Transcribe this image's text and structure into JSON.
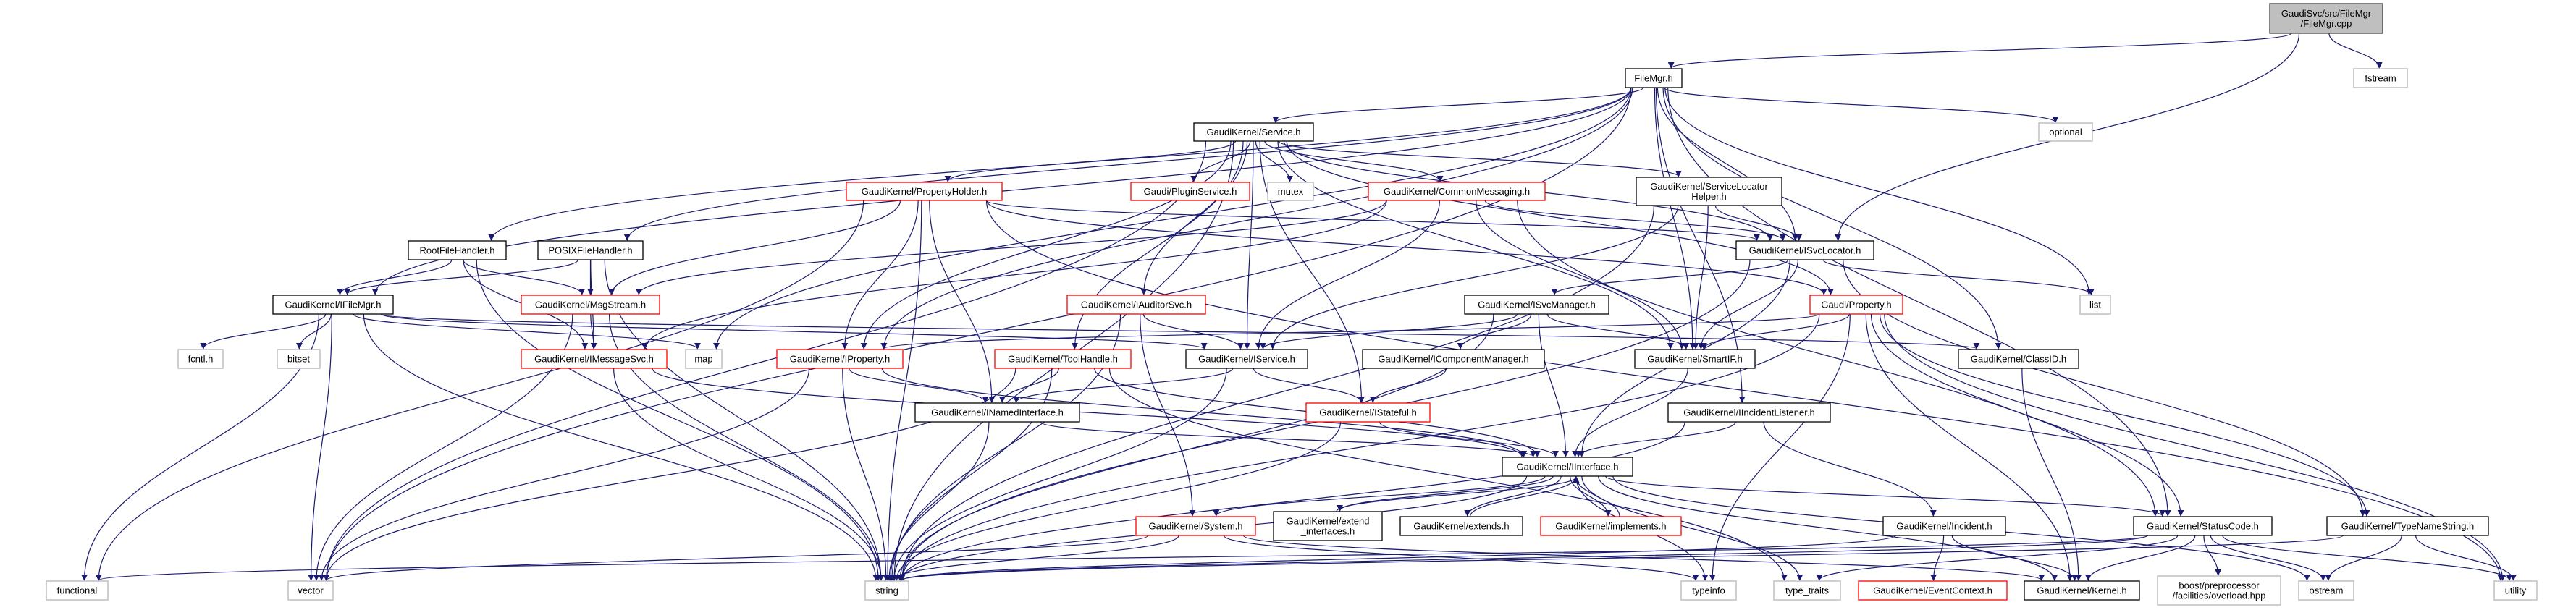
{
  "colors": {
    "edge": "#191970",
    "root_fill": "#bfbfbf",
    "documented_border": "#000000",
    "truncated_border": "#ff0000",
    "system_border": "#bfbfbf"
  },
  "nodes": [
    {
      "id": "filemgr_cpp",
      "label": "GaudiSvc/src/FileMgr\n/FileMgr.cpp",
      "kind": "root"
    },
    {
      "id": "filemgr_h",
      "label": "FileMgr.h",
      "kind": "documented"
    },
    {
      "id": "fstream",
      "label": "fstream",
      "kind": "system"
    },
    {
      "id": "service_h",
      "label": "GaudiKernel/Service.h",
      "kind": "documented"
    },
    {
      "id": "optional",
      "label": "optional",
      "kind": "system"
    },
    {
      "id": "propertyholder_h",
      "label": "GaudiKernel/PropertyHolder.h",
      "kind": "truncated"
    },
    {
      "id": "pluginservice_h",
      "label": "Gaudi/PluginService.h",
      "kind": "truncated"
    },
    {
      "id": "mutex",
      "label": "mutex",
      "kind": "system"
    },
    {
      "id": "commonmessaging_h",
      "label": "GaudiKernel/CommonMessaging.h",
      "kind": "truncated"
    },
    {
      "id": "servicelocatorhelper_h",
      "label": "GaudiKernel/ServiceLocator\nHelper.h",
      "kind": "documented"
    },
    {
      "id": "rootfilehandler_h",
      "label": "RootFileHandler.h",
      "kind": "documented"
    },
    {
      "id": "posixfilehandler_h",
      "label": "POSIXFileHandler.h",
      "kind": "documented"
    },
    {
      "id": "isvclocator_h",
      "label": "GaudiKernel/ISvcLocator.h",
      "kind": "documented"
    },
    {
      "id": "ifilemgr_h",
      "label": "GaudiKernel/IFileMgr.h",
      "kind": "documented"
    },
    {
      "id": "msgstream_h",
      "label": "GaudiKernel/MsgStream.h",
      "kind": "truncated"
    },
    {
      "id": "iauditorsvc_h",
      "label": "GaudiKernel/IAuditorSvc.h",
      "kind": "truncated"
    },
    {
      "id": "isvcmanager_h",
      "label": "GaudiKernel/ISvcManager.h",
      "kind": "documented"
    },
    {
      "id": "property_h",
      "label": "Gaudi/Property.h",
      "kind": "truncated"
    },
    {
      "id": "list",
      "label": "list",
      "kind": "system"
    },
    {
      "id": "fcntl_h",
      "label": "fcntl.h",
      "kind": "system"
    },
    {
      "id": "bitset",
      "label": "bitset",
      "kind": "system"
    },
    {
      "id": "imessagesvc_h",
      "label": "GaudiKernel/IMessageSvc.h",
      "kind": "truncated"
    },
    {
      "id": "map",
      "label": "map",
      "kind": "system"
    },
    {
      "id": "iproperty_h",
      "label": "GaudiKernel/IProperty.h",
      "kind": "truncated"
    },
    {
      "id": "toolhandle_h",
      "label": "GaudiKernel/ToolHandle.h",
      "kind": "truncated"
    },
    {
      "id": "iservice_h",
      "label": "GaudiKernel/IService.h",
      "kind": "documented"
    },
    {
      "id": "icomponentmanager_h",
      "label": "GaudiKernel/IComponentManager.h",
      "kind": "documented"
    },
    {
      "id": "smartif_h",
      "label": "GaudiKernel/SmartIF.h",
      "kind": "documented"
    },
    {
      "id": "classid_h",
      "label": "GaudiKernel/ClassID.h",
      "kind": "documented"
    },
    {
      "id": "inamedinterface_h",
      "label": "GaudiKernel/INamedInterface.h",
      "kind": "documented"
    },
    {
      "id": "istateful_h",
      "label": "GaudiKernel/IStateful.h",
      "kind": "truncated"
    },
    {
      "id": "iincidentlistener_h",
      "label": "GaudiKernel/IIncidentListener.h",
      "kind": "documented"
    },
    {
      "id": "iinterface_h",
      "label": "GaudiKernel/IInterface.h",
      "kind": "documented"
    },
    {
      "id": "system_h",
      "label": "GaudiKernel/System.h",
      "kind": "truncated"
    },
    {
      "id": "extend_interfaces_h",
      "label": "GaudiKernel/extend\n_interfaces.h",
      "kind": "documented"
    },
    {
      "id": "extends_h",
      "label": "GaudiKernel/extends.h",
      "kind": "documented"
    },
    {
      "id": "implements_h",
      "label": "GaudiKernel/implements.h",
      "kind": "truncated"
    },
    {
      "id": "incident_h",
      "label": "GaudiKernel/Incident.h",
      "kind": "documented"
    },
    {
      "id": "statuscode_h",
      "label": "GaudiKernel/StatusCode.h",
      "kind": "documented"
    },
    {
      "id": "typenamestring_h",
      "label": "GaudiKernel/TypeNameString.h",
      "kind": "documented"
    },
    {
      "id": "functional",
      "label": "functional",
      "kind": "system"
    },
    {
      "id": "vector",
      "label": "vector",
      "kind": "system"
    },
    {
      "id": "string",
      "label": "string",
      "kind": "system"
    },
    {
      "id": "typeinfo",
      "label": "typeinfo",
      "kind": "system"
    },
    {
      "id": "type_traits",
      "label": "type_traits",
      "kind": "system"
    },
    {
      "id": "eventcontext_h",
      "label": "GaudiKernel/EventContext.h",
      "kind": "truncated"
    },
    {
      "id": "kernel_h",
      "label": "GaudiKernel/Kernel.h",
      "kind": "documented"
    },
    {
      "id": "boost_overload",
      "label": "boost/preprocessor\n/facilities/overload.hpp",
      "kind": "system"
    },
    {
      "id": "ostream",
      "label": "ostream",
      "kind": "system"
    },
    {
      "id": "utility",
      "label": "utility",
      "kind": "system"
    }
  ],
  "edges": [
    [
      "filemgr_cpp",
      "filemgr_h"
    ],
    [
      "filemgr_cpp",
      "isvclocator_h"
    ],
    [
      "filemgr_cpp",
      "fstream"
    ],
    [
      "filemgr_h",
      "service_h"
    ],
    [
      "filemgr_h",
      "optional"
    ],
    [
      "filemgr_h",
      "list"
    ],
    [
      "filemgr_h",
      "ifilemgr_h"
    ],
    [
      "filemgr_h",
      "rootfilehandler_h"
    ],
    [
      "filemgr_h",
      "posixfilehandler_h"
    ],
    [
      "filemgr_h",
      "vector"
    ],
    [
      "filemgr_h",
      "map"
    ],
    [
      "filemgr_h",
      "iproperty_h"
    ],
    [
      "filemgr_h",
      "isvclocator_h"
    ],
    [
      "filemgr_h",
      "smartif_h"
    ],
    [
      "filemgr_h",
      "classid_h"
    ],
    [
      "filemgr_h",
      "iincidentlistener_h"
    ],
    [
      "filemgr_h",
      "statuscode_h"
    ],
    [
      "service_h",
      "propertyholder_h"
    ],
    [
      "service_h",
      "pluginservice_h"
    ],
    [
      "service_h",
      "mutex"
    ],
    [
      "service_h",
      "commonmessaging_h"
    ],
    [
      "service_h",
      "servicelocatorhelper_h"
    ],
    [
      "service_h",
      "iservice_h"
    ],
    [
      "service_h",
      "isvclocator_h"
    ],
    [
      "service_h",
      "smartif_h"
    ],
    [
      "service_h",
      "iauditorsvc_h"
    ],
    [
      "service_h",
      "toolhandle_h"
    ],
    [
      "service_h",
      "iproperty_h"
    ],
    [
      "service_h",
      "property_h"
    ],
    [
      "service_h",
      "istateful_h"
    ],
    [
      "service_h",
      "vector"
    ],
    [
      "service_h",
      "string"
    ],
    [
      "propertyholder_h",
      "msgstream_h"
    ],
    [
      "propertyholder_h",
      "iproperty_h"
    ],
    [
      "propertyholder_h",
      "inamedinterface_h"
    ],
    [
      "propertyholder_h",
      "isvclocator_h"
    ],
    [
      "propertyholder_h",
      "property_h"
    ],
    [
      "propertyholder_h",
      "string"
    ],
    [
      "propertyholder_h",
      "functional"
    ],
    [
      "propertyholder_h",
      "utility"
    ],
    [
      "commonmessaging_h",
      "msgstream_h"
    ],
    [
      "commonmessaging_h",
      "imessagesvc_h"
    ],
    [
      "commonmessaging_h",
      "iservice_h"
    ],
    [
      "commonmessaging_h",
      "smartif_h"
    ],
    [
      "commonmessaging_h",
      "isvclocator_h"
    ],
    [
      "commonmessaging_h",
      "statuscode_h"
    ],
    [
      "servicelocatorhelper_h",
      "isvclocator_h"
    ],
    [
      "servicelocatorhelper_h",
      "smartif_h"
    ],
    [
      "servicelocatorhelper_h",
      "iservice_h"
    ],
    [
      "servicelocatorhelper_h",
      "string"
    ],
    [
      "rootfilehandler_h",
      "ifilemgr_h"
    ],
    [
      "rootfilehandler_h",
      "msgstream_h"
    ],
    [
      "rootfilehandler_h",
      "imessagesvc_h"
    ],
    [
      "rootfilehandler_h",
      "string"
    ],
    [
      "posixfilehandler_h",
      "ifilemgr_h"
    ],
    [
      "posixfilehandler_h",
      "msgstream_h"
    ],
    [
      "posixfilehandler_h",
      "imessagesvc_h"
    ],
    [
      "posixfilehandler_h",
      "string"
    ],
    [
      "ifilemgr_h",
      "fcntl_h"
    ],
    [
      "ifilemgr_h",
      "bitset"
    ],
    [
      "ifilemgr_h",
      "vector"
    ],
    [
      "ifilemgr_h",
      "string"
    ],
    [
      "ifilemgr_h",
      "map"
    ],
    [
      "ifilemgr_h",
      "functional"
    ],
    [
      "ifilemgr_h",
      "iservice_h"
    ],
    [
      "ifilemgr_h",
      "classid_h"
    ],
    [
      "msgstream_h",
      "imessagesvc_h"
    ],
    [
      "msgstream_h",
      "string"
    ],
    [
      "msgstream_h",
      "vector"
    ],
    [
      "isvclocator_h",
      "iinterface_h"
    ],
    [
      "isvclocator_h",
      "smartif_h"
    ],
    [
      "isvclocator_h",
      "list"
    ],
    [
      "isvclocator_h",
      "string"
    ],
    [
      "isvclocator_h",
      "typenamestring_h"
    ],
    [
      "isvclocator_h",
      "isvcmanager_h"
    ],
    [
      "property_h",
      "iproperty_h"
    ],
    [
      "property_h",
      "smartif_h"
    ],
    [
      "property_h",
      "kernel_h"
    ],
    [
      "property_h",
      "typeinfo"
    ],
    [
      "property_h",
      "string"
    ],
    [
      "property_h",
      "typenamestring_h"
    ],
    [
      "property_h",
      "utility"
    ],
    [
      "property_h",
      "statuscode_h"
    ],
    [
      "iauditorsvc_h",
      "iservice_h"
    ],
    [
      "iauditorsvc_h",
      "system_h"
    ],
    [
      "iauditorsvc_h",
      "string"
    ],
    [
      "isvcmanager_h",
      "iservice_h"
    ],
    [
      "isvcmanager_h",
      "icomponentmanager_h"
    ],
    [
      "isvcmanager_h",
      "smartif_h"
    ],
    [
      "isvcmanager_h",
      "iinterface_h"
    ],
    [
      "isvcmanager_h",
      "string"
    ],
    [
      "iproperty_h",
      "inamedinterface_h"
    ],
    [
      "iproperty_h",
      "iinterface_h"
    ],
    [
      "iproperty_h",
      "string"
    ],
    [
      "iproperty_h",
      "vector"
    ],
    [
      "imessagesvc_h",
      "iinterface_h"
    ],
    [
      "imessagesvc_h",
      "string"
    ],
    [
      "toolhandle_h",
      "inamedinterface_h"
    ],
    [
      "toolhandle_h",
      "iinterface_h"
    ],
    [
      "toolhandle_h",
      "string"
    ],
    [
      "toolhandle_h",
      "vector"
    ],
    [
      "toolhandle_h",
      "type_traits"
    ],
    [
      "iservice_h",
      "inamedinterface_h"
    ],
    [
      "iservice_h",
      "istateful_h"
    ],
    [
      "iservice_h",
      "string"
    ],
    [
      "icomponentmanager_h",
      "istateful_h"
    ],
    [
      "istateful_h",
      "iinterface_h"
    ],
    [
      "istateful_h",
      "string"
    ],
    [
      "inamedinterface_h",
      "iinterface_h"
    ],
    [
      "inamedinterface_h",
      "string"
    ],
    [
      "smartif_h",
      "iinterface_h"
    ],
    [
      "classid_h",
      "kernel_h"
    ],
    [
      "iincidentlistener_h",
      "iinterface_h"
    ],
    [
      "iincidentlistener_h",
      "incident_h"
    ],
    [
      "iincidentlistener_h",
      "string"
    ],
    [
      "iinterface_h",
      "system_h"
    ],
    [
      "iinterface_h",
      "extend_interfaces_h"
    ],
    [
      "iinterface_h",
      "extends_h"
    ],
    [
      "iinterface_h",
      "implements_h"
    ],
    [
      "iinterface_h",
      "statuscode_h"
    ],
    [
      "iinterface_h",
      "kernel_h"
    ],
    [
      "iinterface_h",
      "typeinfo"
    ],
    [
      "iinterface_h",
      "type_traits"
    ],
    [
      "iinterface_h",
      "ostream"
    ],
    [
      "iinterface_h",
      "string"
    ],
    [
      "extend_interfaces_h",
      "iinterface_h"
    ],
    [
      "extends_h",
      "iinterface_h"
    ],
    [
      "implements_h",
      "iinterface_h"
    ],
    [
      "system_h",
      "kernel_h"
    ],
    [
      "system_h",
      "string"
    ],
    [
      "system_h",
      "vector"
    ],
    [
      "system_h",
      "typeinfo"
    ],
    [
      "incident_h",
      "eventcontext_h"
    ],
    [
      "incident_h",
      "kernel_h"
    ],
    [
      "incident_h",
      "string"
    ],
    [
      "statuscode_h",
      "kernel_h"
    ],
    [
      "statuscode_h",
      "boost_overload"
    ],
    [
      "statuscode_h",
      "ostream"
    ],
    [
      "statuscode_h",
      "utility"
    ],
    [
      "statuscode_h",
      "type_traits"
    ],
    [
      "statuscode_h",
      "string"
    ],
    [
      "statuscode_h",
      "functional"
    ],
    [
      "typenamestring_h",
      "ostream"
    ],
    [
      "typenamestring_h",
      "utility"
    ],
    [
      "typenamestring_h",
      "string"
    ]
  ]
}
